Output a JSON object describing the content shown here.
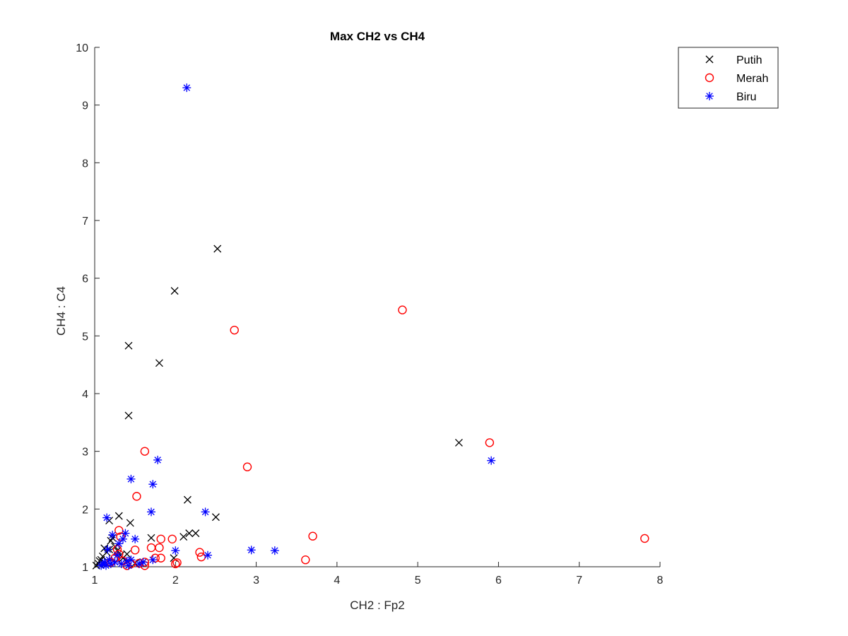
{
  "chart_data": {
    "type": "scatter",
    "title": "Max CH2 vs CH4",
    "xlabel": "CH2 : Fp2",
    "ylabel": "CH4 : C4",
    "xlim": [
      1,
      8
    ],
    "ylim": [
      1,
      10
    ],
    "xticks": [
      1,
      2,
      3,
      4,
      5,
      6,
      7,
      8
    ],
    "yticks": [
      1,
      2,
      3,
      4,
      5,
      6,
      7,
      8,
      9,
      10
    ],
    "grid": false,
    "legend_position": "top-right",
    "series": [
      {
        "name": "Putih",
        "marker": "x",
        "color": "#000000",
        "points": [
          [
            1.02,
            1.02
          ],
          [
            1.05,
            1.05
          ],
          [
            1.06,
            1.1
          ],
          [
            1.08,
            1.12
          ],
          [
            1.1,
            1.18
          ],
          [
            1.12,
            1.32
          ],
          [
            1.15,
            1.25
          ],
          [
            1.18,
            1.3
          ],
          [
            1.2,
            1.45
          ],
          [
            1.22,
            1.5
          ],
          [
            1.25,
            1.35
          ],
          [
            1.28,
            1.28
          ],
          [
            1.3,
            1.88
          ],
          [
            1.32,
            1.2
          ],
          [
            1.35,
            1.15
          ],
          [
            1.4,
            1.22
          ],
          [
            1.18,
            1.8
          ],
          [
            1.44,
            1.76
          ],
          [
            1.42,
            4.83
          ],
          [
            1.42,
            3.62
          ],
          [
            1.8,
            4.53
          ],
          [
            1.99,
            5.78
          ],
          [
            2.52,
            6.51
          ],
          [
            1.7,
            1.5
          ],
          [
            2.15,
            2.16
          ],
          [
            2.1,
            1.52
          ],
          [
            2.17,
            1.58
          ],
          [
            2.25,
            1.58
          ],
          [
            2.5,
            1.86
          ],
          [
            1.98,
            1.15
          ],
          [
            1.6,
            1.08
          ],
          [
            1.5,
            1.06
          ],
          [
            5.51,
            3.15
          ]
        ]
      },
      {
        "name": "Merah",
        "marker": "o",
        "color": "#ff0000",
        "points": [
          [
            1.2,
            1.08
          ],
          [
            1.25,
            1.15
          ],
          [
            1.28,
            1.3
          ],
          [
            1.3,
            1.63
          ],
          [
            1.32,
            1.52
          ],
          [
            1.3,
            1.22
          ],
          [
            1.35,
            1.1
          ],
          [
            1.4,
            1.02
          ],
          [
            1.45,
            1.05
          ],
          [
            1.5,
            1.29
          ],
          [
            1.52,
            2.22
          ],
          [
            1.55,
            1.06
          ],
          [
            1.62,
            1.02
          ],
          [
            1.62,
            3.0
          ],
          [
            1.62,
            1.08
          ],
          [
            1.7,
            1.33
          ],
          [
            1.75,
            1.15
          ],
          [
            1.8,
            1.33
          ],
          [
            1.82,
            1.48
          ],
          [
            1.82,
            1.15
          ],
          [
            1.96,
            1.48
          ],
          [
            2.0,
            1.05
          ],
          [
            2.02,
            1.07
          ],
          [
            2.3,
            1.25
          ],
          [
            2.32,
            1.17
          ],
          [
            2.73,
            5.1
          ],
          [
            2.89,
            2.73
          ],
          [
            3.61,
            1.12
          ],
          [
            3.7,
            1.53
          ],
          [
            4.81,
            5.45
          ],
          [
            5.89,
            3.15
          ],
          [
            7.81,
            1.49
          ]
        ]
      },
      {
        "name": "Biru",
        "marker": "*",
        "color": "#0000ff",
        "points": [
          [
            1.08,
            1.02
          ],
          [
            1.1,
            1.05
          ],
          [
            1.12,
            1.08
          ],
          [
            1.14,
            1.02
          ],
          [
            1.15,
            1.85
          ],
          [
            1.16,
            1.3
          ],
          [
            1.18,
            1.12
          ],
          [
            1.2,
            1.05
          ],
          [
            1.22,
            1.55
          ],
          [
            1.25,
            1.08
          ],
          [
            1.28,
            1.2
          ],
          [
            1.3,
            1.4
          ],
          [
            1.33,
            1.05
          ],
          [
            1.35,
            1.48
          ],
          [
            1.38,
            1.58
          ],
          [
            1.4,
            1.1
          ],
          [
            1.42,
            1.02
          ],
          [
            1.45,
            2.52
          ],
          [
            1.45,
            1.12
          ],
          [
            1.5,
            1.48
          ],
          [
            1.55,
            1.05
          ],
          [
            1.6,
            1.08
          ],
          [
            1.7,
            1.95
          ],
          [
            1.72,
            2.43
          ],
          [
            1.72,
            1.12
          ],
          [
            1.78,
            2.85
          ],
          [
            2.0,
            1.28
          ],
          [
            2.14,
            9.3
          ],
          [
            2.37,
            1.95
          ],
          [
            2.4,
            1.2
          ],
          [
            2.94,
            1.29
          ],
          [
            3.23,
            1.28
          ],
          [
            5.91,
            2.84
          ]
        ]
      }
    ]
  }
}
